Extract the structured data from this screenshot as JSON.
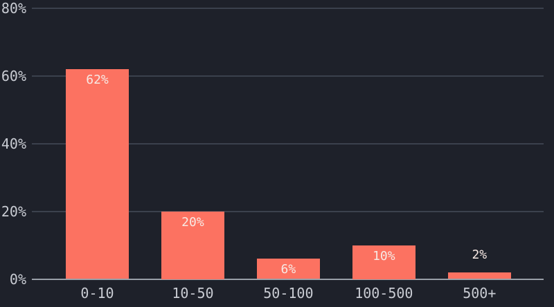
{
  "chart_data": {
    "type": "bar",
    "title": "",
    "xlabel": "",
    "ylabel": "",
    "categories": [
      "0-10",
      "10-50",
      "50-100",
      "100-500",
      "500+"
    ],
    "values": [
      62,
      20,
      6,
      10,
      2
    ],
    "value_labels": [
      "62%",
      "20%",
      "6%",
      "10%",
      "2%"
    ],
    "ylim": [
      0,
      80
    ],
    "y_ticks": [
      {
        "value": 0,
        "label": "0%"
      },
      {
        "value": 20,
        "label": "20%"
      },
      {
        "value": 40,
        "label": "40%"
      },
      {
        "value": 60,
        "label": "60%"
      },
      {
        "value": 80,
        "label": "80%"
      }
    ],
    "grid": "horizontal",
    "legend": "none",
    "colors": {
      "background": "#1E212A",
      "bar": "#FC7261",
      "grid_line": "#3B414D",
      "axis_line": "#9AA0A9",
      "tick_label": "#C9CCD3",
      "bar_label": "#F7E9E4"
    }
  }
}
